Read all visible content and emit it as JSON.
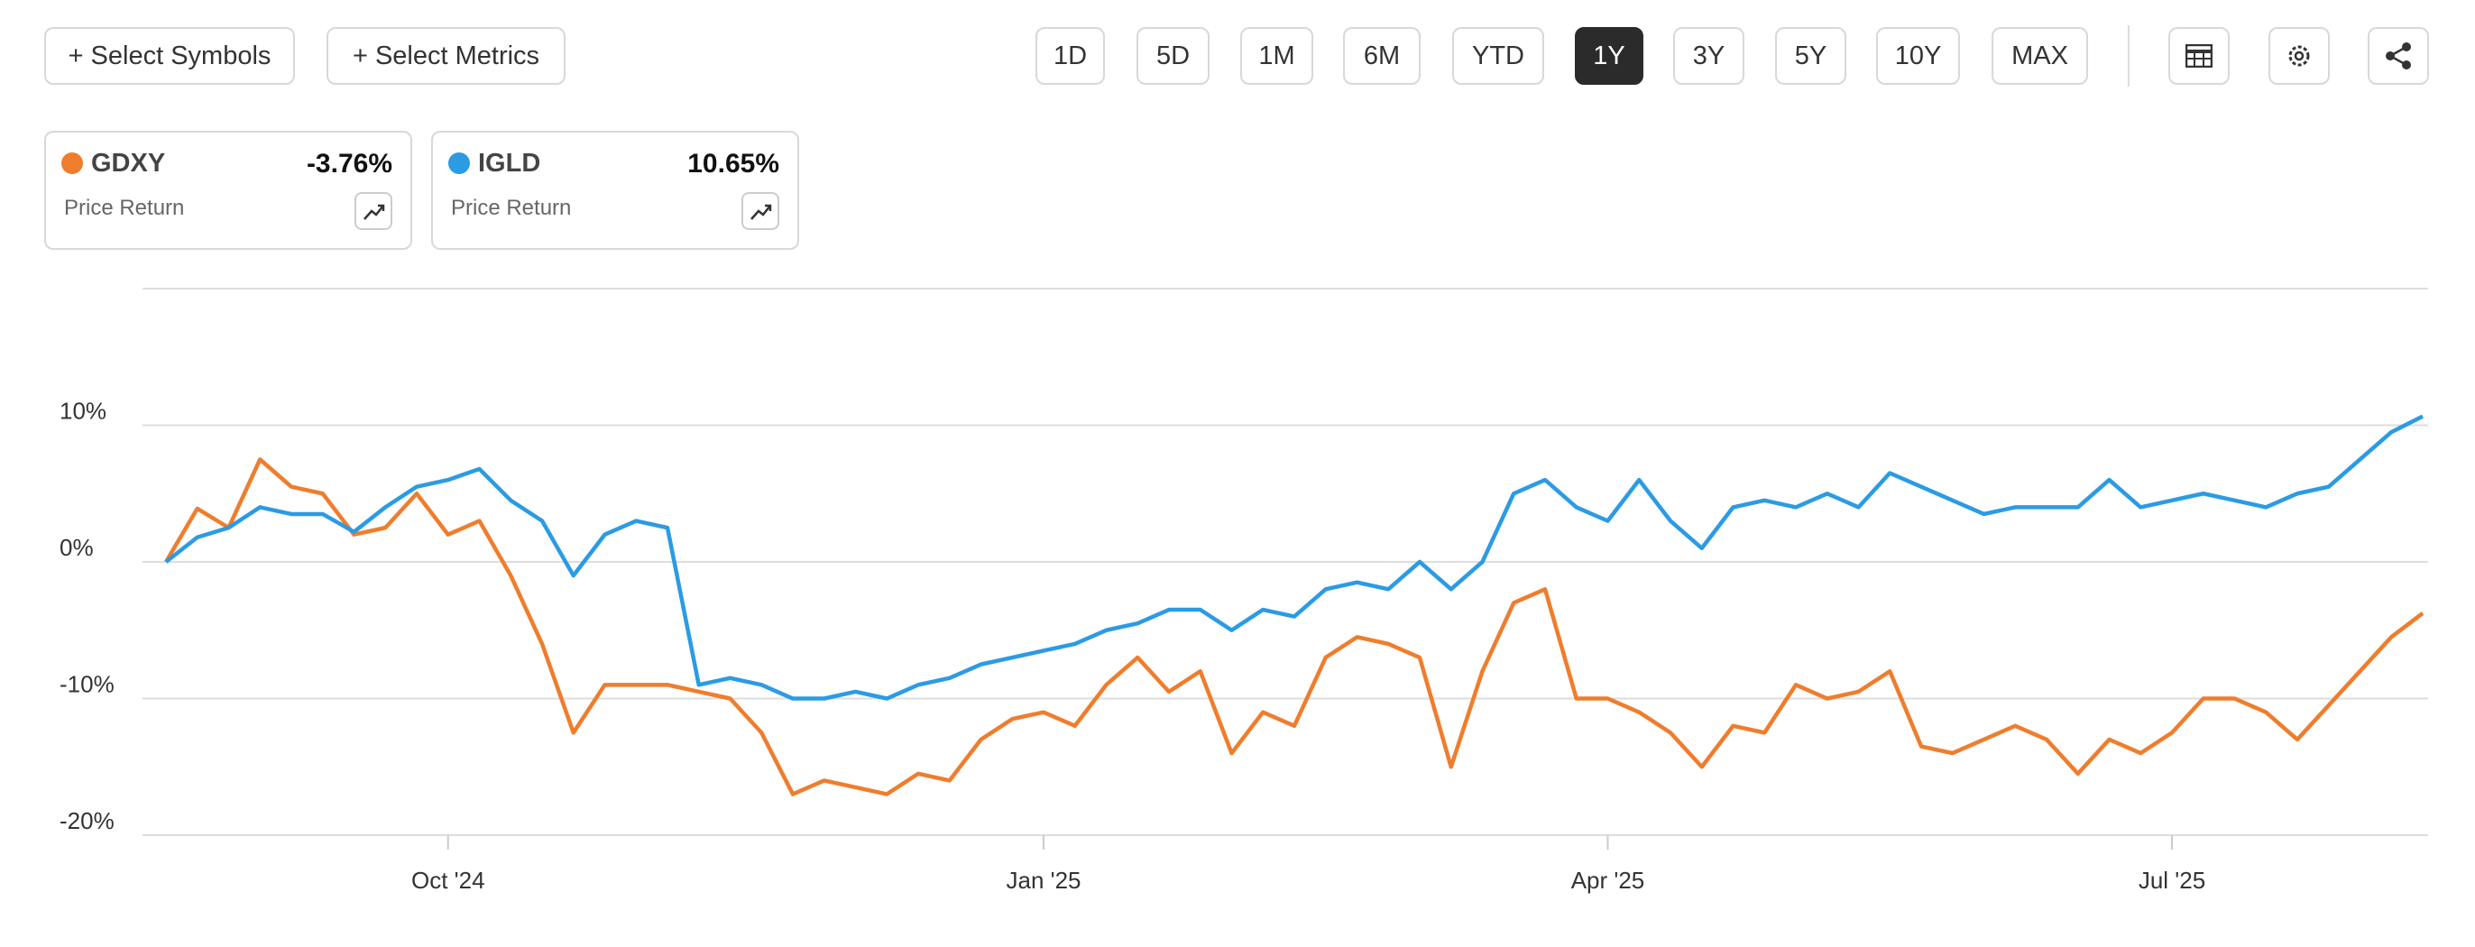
{
  "toolbar": {
    "left": [
      "+ Select Symbols",
      "+ Select Metrics"
    ],
    "ranges": [
      "1D",
      "5D",
      "1M",
      "6M",
      "YTD",
      "1Y",
      "3Y",
      "5Y",
      "10Y",
      "MAX"
    ],
    "active_range": "1Y"
  },
  "chart_data": {
    "type": "line",
    "categories": [
      null,
      null,
      null,
      null,
      null,
      null,
      null,
      null,
      null,
      "Oct '24",
      null,
      null,
      null,
      null,
      null,
      null,
      null,
      null,
      null,
      null,
      null,
      null,
      null,
      null,
      null,
      null,
      null,
      null,
      "Jan '25",
      null,
      null,
      null,
      null,
      null,
      null,
      null,
      null,
      null,
      null,
      null,
      null,
      null,
      null,
      null,
      null,
      null,
      "Apr '25",
      null,
      null,
      null,
      null,
      null,
      null,
      null,
      null,
      null,
      null,
      null,
      null,
      null,
      null,
      null,
      null,
      null,
      "Jul '25",
      null,
      null,
      null,
      null,
      null,
      null,
      null,
      null
    ],
    "series": [
      {
        "name": "GDXY",
        "color": "#ef7d2d",
        "change_label": "-3.76%",
        "metric": "Price Return",
        "values": [
          0,
          3.9,
          2.5,
          7.5,
          5.5,
          5,
          2,
          2.5,
          5,
          2,
          3,
          -1,
          -6,
          -12.5,
          -9,
          -9,
          -9,
          -9.5,
          -10,
          -12.5,
          -17,
          -16,
          -16.5,
          -17,
          -15.5,
          -16,
          -13,
          -11.5,
          -11,
          -12,
          -9,
          -7,
          -9.5,
          -8,
          -14,
          -11,
          -12,
          -7,
          -5.5,
          -6,
          -7,
          -15,
          -8,
          -3,
          -2,
          -10,
          -10,
          -11,
          -12.5,
          -15,
          -12,
          -12.5,
          -9,
          -10,
          -9.5,
          -8,
          -13.5,
          -14,
          -13,
          -12,
          -13,
          -15.5,
          -13,
          -14,
          -12.5,
          -10,
          -10,
          -11,
          -13,
          -10.5,
          -8,
          -5.5,
          -3.76
        ]
      },
      {
        "name": "IGLD",
        "color": "#2b9be3",
        "change_label": "10.65%",
        "metric": "Price Return",
        "values": [
          0,
          1.8,
          2.5,
          4,
          3.5,
          3.5,
          2.2,
          4,
          5.5,
          6,
          6.8,
          4.5,
          3,
          -1,
          2,
          3,
          2.5,
          -9,
          -8.5,
          -9,
          -10,
          -10,
          -9.5,
          -10,
          -9,
          -8.5,
          -7.5,
          -7,
          -6.5,
          -6,
          -5,
          -4.5,
          -3.5,
          -3.5,
          -5,
          -3.5,
          -4,
          -2,
          -1.5,
          -2,
          0,
          -2,
          0,
          5,
          6,
          4,
          3,
          6,
          3,
          1,
          4,
          4.5,
          4,
          5,
          4,
          6.5,
          5.5,
          4.5,
          3.5,
          4,
          4,
          4,
          6,
          4,
          4.5,
          5,
          4.5,
          4,
          5,
          5.5,
          7.5,
          9.5,
          10.65
        ]
      }
    ],
    "ylim": [
      -20,
      20
    ],
    "yticks": [
      {
        "value": 10,
        "label": "10%"
      },
      {
        "value": 0,
        "label": "0%"
      },
      {
        "value": -10,
        "label": "-10%"
      },
      {
        "value": -20,
        "label": "-20%"
      }
    ],
    "grid": true
  }
}
